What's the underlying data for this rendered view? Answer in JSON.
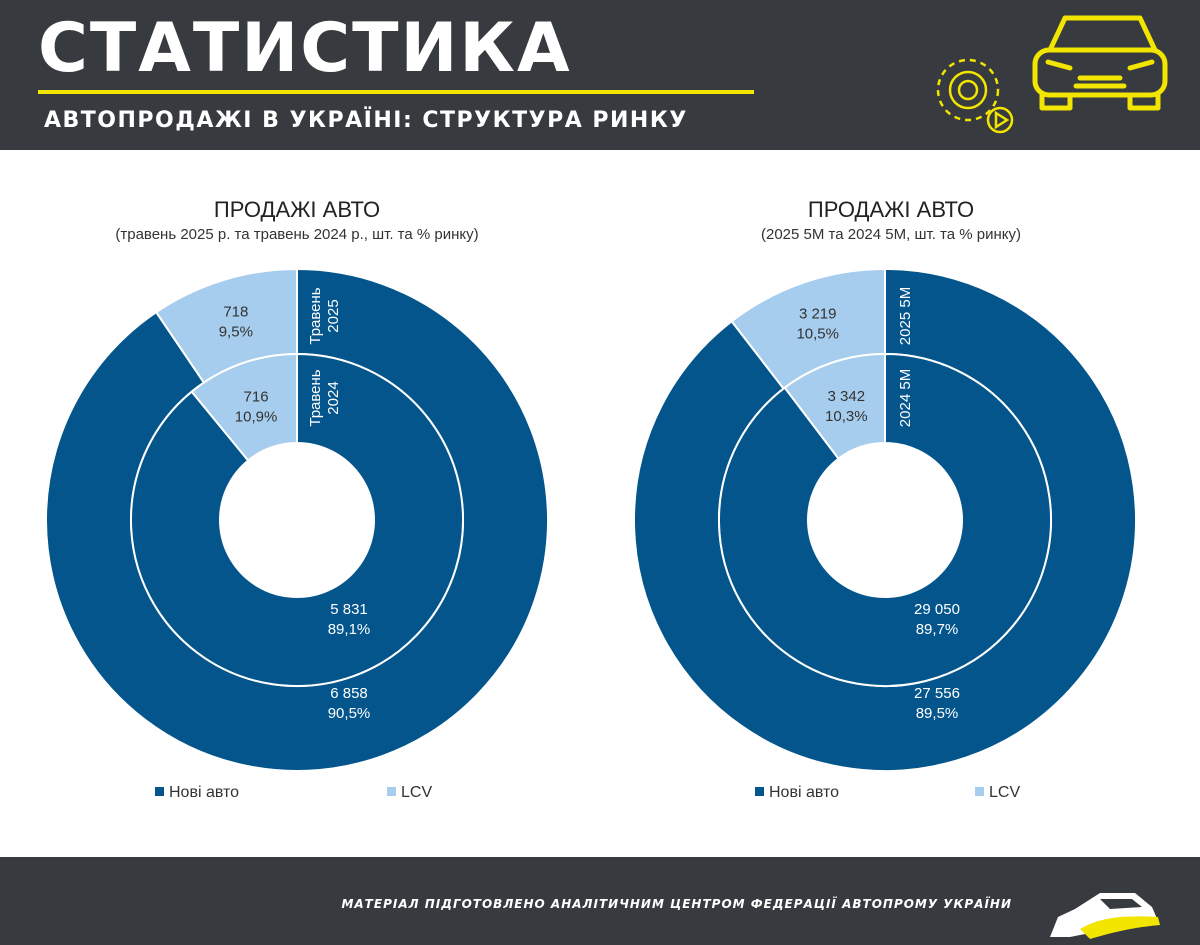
{
  "header": {
    "title": "СТАТИСТИКА",
    "subtitle": "АВТОПРОДАЖІ В УКРАЇНІ: СТРУКТУРА РИНКУ",
    "icons": [
      "car-icon",
      "gear-icon",
      "play-icon"
    ]
  },
  "colors": {
    "header_bg": "#373a3f",
    "accent": "#f2e500",
    "new_cars": "#03558c",
    "lcv": "#a6cdee"
  },
  "chart_data": [
    {
      "type": "pie",
      "subtype": "double-donut",
      "title": "ПРОДАЖІ АВТО",
      "subtitle": "(травень 2025 р. та травень 2024 р., шт. та % ринку)",
      "legend": [
        "Нові авто",
        "LCV"
      ],
      "legend_position": "bottom",
      "rings": [
        {
          "name": "Травень 2025",
          "position": "outer",
          "slices": [
            {
              "category": "Нові авто",
              "value": 6858,
              "label_value": "6 858",
              "label_pct": "90,5%"
            },
            {
              "category": "LCV",
              "value": 718,
              "label_value": "718",
              "label_pct": "9,5%"
            }
          ]
        },
        {
          "name": "Травень 2024",
          "position": "inner",
          "slices": [
            {
              "category": "Нові авто",
              "value": 5831,
              "label_value": "5 831",
              "label_pct": "89,1%"
            },
            {
              "category": "LCV",
              "value": 716,
              "label_value": "716",
              "label_pct": "10,9%"
            }
          ]
        }
      ]
    },
    {
      "type": "pie",
      "subtype": "double-donut",
      "title": "ПРОДАЖІ АВТО",
      "subtitle": "(2025 5М та 2024 5М, шт. та % ринку)",
      "legend": [
        "Нові авто",
        "LCV"
      ],
      "legend_position": "bottom",
      "rings": [
        {
          "name": "2025 5М",
          "position": "outer",
          "slices": [
            {
              "category": "Нові авто",
              "value": 27556,
              "label_value": "27 556",
              "label_pct": "89,5%"
            },
            {
              "category": "LCV",
              "value": 3219,
              "label_value": "3 219",
              "label_pct": "10,5%"
            }
          ]
        },
        {
          "name": "2024 5М",
          "position": "inner",
          "slices": [
            {
              "category": "Нові авто",
              "value": 29050,
              "label_value": "29 050",
              "label_pct": "89,7%"
            },
            {
              "category": "LCV",
              "value": 3342,
              "label_value": "3 342",
              "label_pct": "10,3%"
            }
          ]
        }
      ]
    }
  ],
  "footer": {
    "text": "МАТЕРІАЛ ПІДГОТОВЛЕНО АНАЛІТИЧНИМ ЦЕНТРОМ ФЕДЕРАЦІЇ АВТОПРОМУ УКРАЇНИ"
  }
}
